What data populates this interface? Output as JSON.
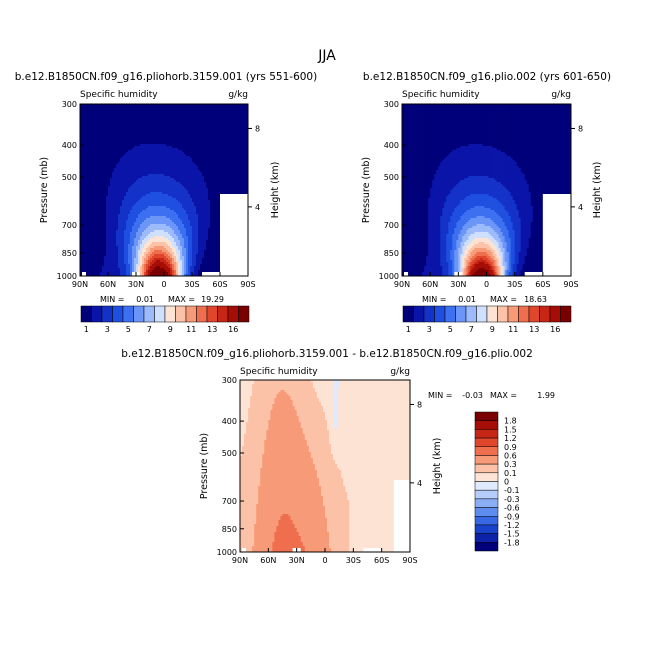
{
  "chart_data": [
    {
      "type": "contour",
      "title": "b.e12.B1850CN.f09_g16.pliohorb.3159.001 (yrs 551-600)",
      "left_string": "Specific humidity",
      "right_string": "g/kg",
      "ylabel": "Pressure (mb)",
      "y2label": "Height (km)",
      "x_ticks": [
        "90N",
        "60N",
        "30N",
        "0",
        "30S",
        "60S",
        "90S"
      ],
      "y_ticks": [
        "300",
        "400",
        "500",
        "700",
        "850",
        "1000"
      ],
      "y2_ticks": [
        "8",
        "4"
      ],
      "min_label": "MIN =",
      "min_value": "0.01",
      "max_label": "MAX =",
      "max_value": "19.29",
      "peak_lat": 5,
      "scale": 1.0
    },
    {
      "type": "contour",
      "title": "b.e12.B1850CN.f09_g16.plio.002 (yrs 601-650)",
      "left_string": "Specific humidity",
      "right_string": "g/kg",
      "ylabel": "Pressure (mb)",
      "y2label": "Height (km)",
      "x_ticks": [
        "90N",
        "60N",
        "30N",
        "0",
        "30S",
        "60S",
        "90S"
      ],
      "y_ticks": [
        "300",
        "400",
        "500",
        "700",
        "850",
        "1000"
      ],
      "y2_ticks": [
        "8",
        "4"
      ],
      "min_label": "MIN =",
      "min_value": "0.01",
      "max_label": "MAX =",
      "max_value": "18.63",
      "peak_lat": 5,
      "scale": 0.97
    },
    {
      "type": "contour-difference",
      "title": "b.e12.B1850CN.f09_g16.pliohorb.3159.001 - b.e12.B1850CN.f09_g16.plio.002",
      "left_string": "Specific humidity",
      "right_string": "g/kg",
      "ylabel": "Pressure (mb)",
      "y2label": "Height (km)",
      "x_ticks": [
        "90N",
        "60N",
        "30N",
        "0",
        "30S",
        "60S",
        "90S"
      ],
      "y_ticks": [
        "300",
        "400",
        "500",
        "700",
        "850",
        "1000"
      ],
      "y2_ticks": [
        "8",
        "4"
      ],
      "min_label": "MIN =",
      "min_value": "-0.03",
      "max_label": "MAX =",
      "max_value": "1.99"
    }
  ],
  "figure_title": "JJA",
  "colorbar_abs": {
    "orientation": "horizontal",
    "levels": [
      1,
      2,
      3,
      4,
      5,
      6,
      7,
      8,
      9,
      10,
      11,
      12,
      13,
      14,
      16
    ],
    "labels": [
      "1",
      "3",
      "5",
      "7",
      "9",
      "11",
      "13",
      "16"
    ],
    "colors": [
      "#00007a",
      "#0a14a8",
      "#1432c8",
      "#1f4fe0",
      "#3d70f0",
      "#6b96f7",
      "#9dbbfb",
      "#cfe0fd",
      "#fde3d4",
      "#fbc2a8",
      "#f79a78",
      "#ef6e4e",
      "#e0462c",
      "#c72616",
      "#a50d06",
      "#7a0000"
    ]
  },
  "colorbar_diff": {
    "orientation": "vertical",
    "labels": [
      "1.8",
      "1.5",
      "1.2",
      "0.9",
      "0.6",
      "0.3",
      "0.1",
      "0",
      "-0.1",
      "-0.3",
      "-0.6",
      "-0.9",
      "-1.2",
      "-1.5",
      "-1.8"
    ],
    "colors": [
      "#7a0000",
      "#a50d06",
      "#c72616",
      "#e0462c",
      "#ef6e4e",
      "#f79a78",
      "#fbc2a8",
      "#fde3d4",
      "#dfeafc",
      "#b6cdf9",
      "#8aaef5",
      "#5f8cef",
      "#3868e4",
      "#1a43cc",
      "#0c22a8",
      "#00007a"
    ]
  }
}
